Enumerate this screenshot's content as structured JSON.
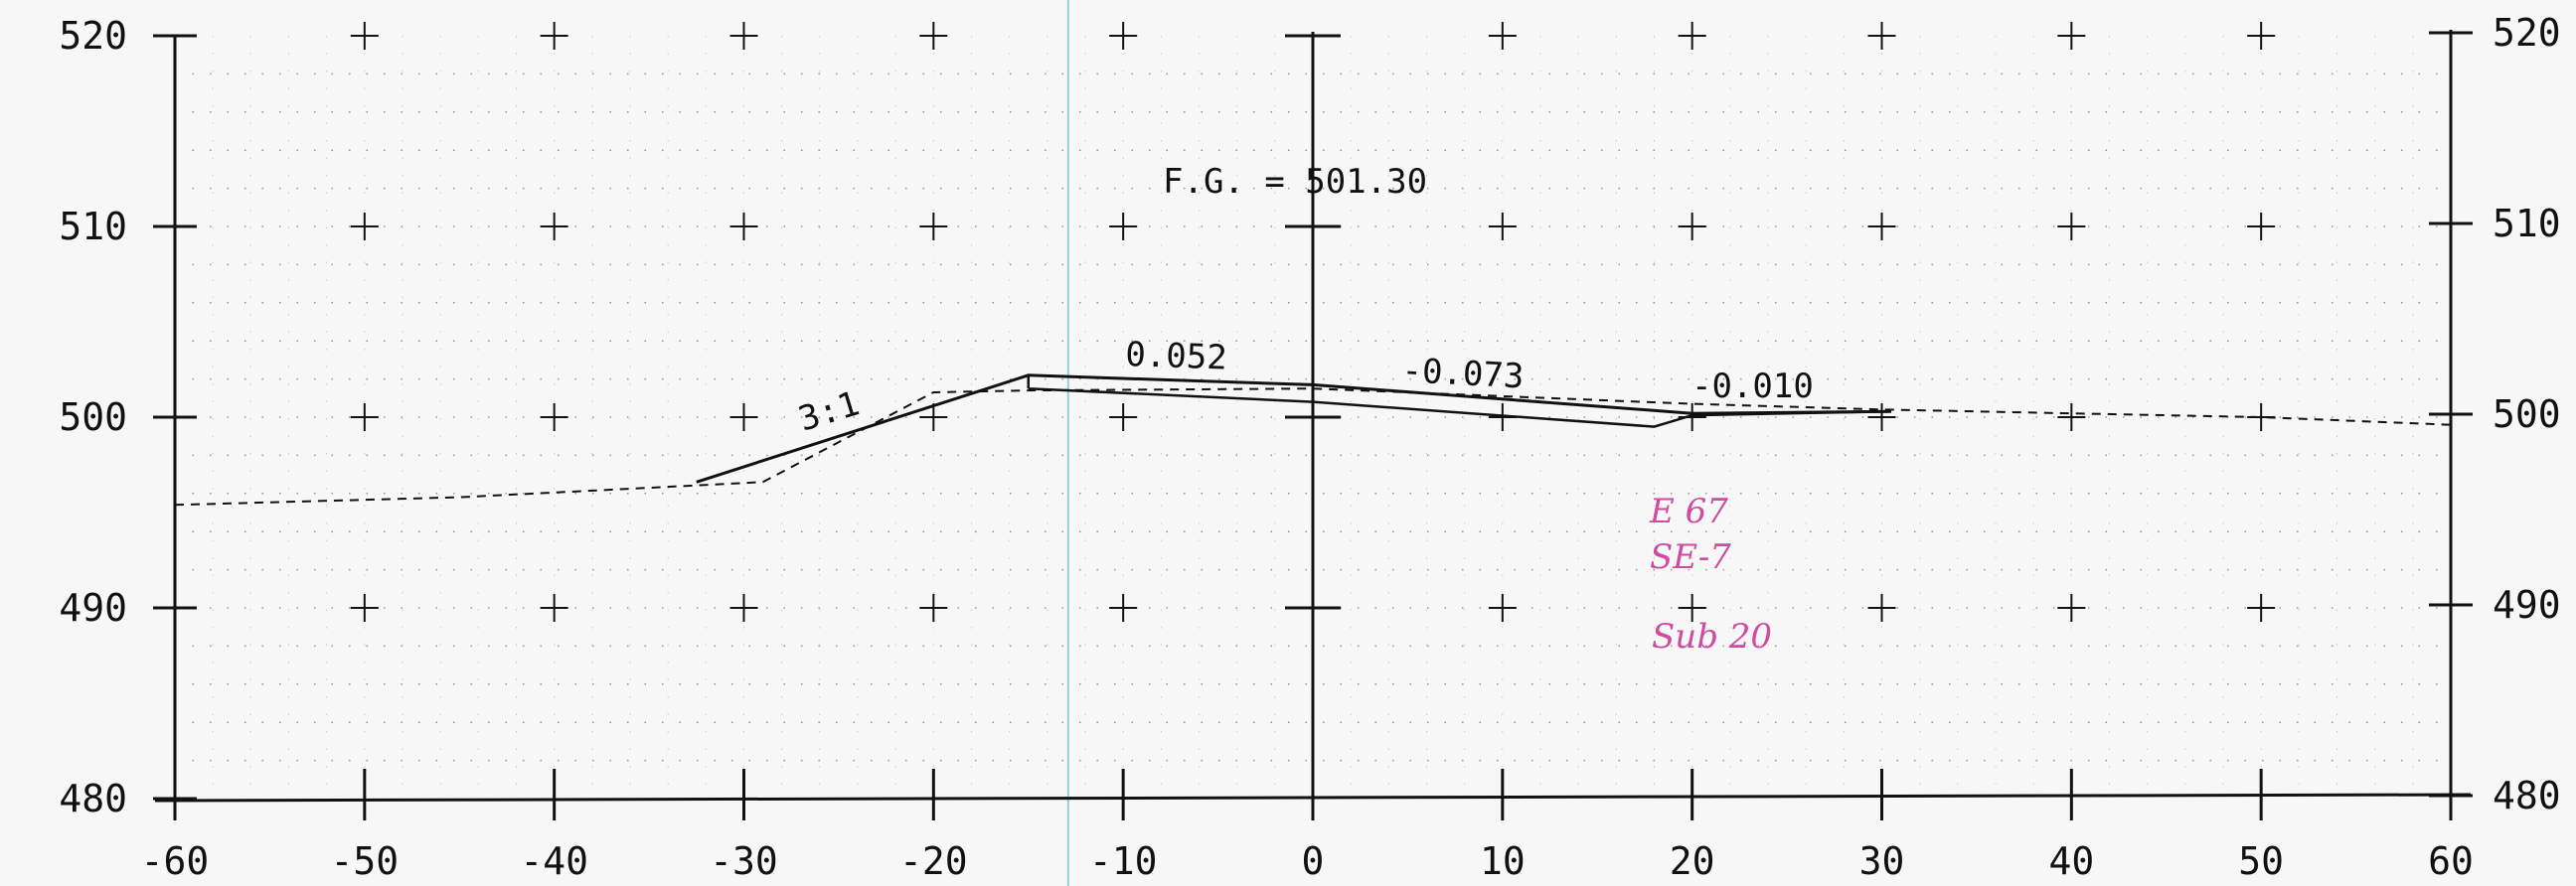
{
  "chart_data": {
    "type": "line",
    "x_ticks": [
      -60,
      -50,
      -40,
      -30,
      -20,
      -10,
      0,
      10,
      20,
      30,
      40,
      50,
      60
    ],
    "y_ticks": [
      480,
      490,
      500,
      510,
      520
    ],
    "xlim": [
      -60,
      60
    ],
    "ylim": [
      480,
      520
    ],
    "grid": "dotted",
    "existing_ground": {
      "x": [
        -60,
        -45,
        -37,
        -29,
        -20,
        -15,
        0,
        20,
        30,
        40,
        50,
        60
      ],
      "y": [
        495.4,
        495.8,
        496.2,
        496.6,
        501.3,
        501.4,
        501.5,
        500.7,
        500.4,
        500.2,
        500.0,
        499.6
      ]
    },
    "finished_grade_top": {
      "x": [
        -32.5,
        -15,
        0,
        20,
        30.5
      ],
      "y": [
        496.6,
        502.2,
        501.7,
        500.2,
        500.3
      ]
    },
    "pavement_bottom": {
      "x": [
        -15,
        0,
        18,
        20,
        30.5
      ],
      "y": [
        501.5,
        500.8,
        499.5,
        500.1,
        500.3
      ]
    },
    "annotations": {
      "fg_label": "F.G. = 501.30",
      "slope_left": "3:1",
      "cross_slope_1": "0.052",
      "cross_slope_2": "-0.073",
      "cross_slope_3": "-0.010"
    },
    "handwritten": {
      "line1": "E 67",
      "line2": "SE-7",
      "line3": "Sub 20"
    },
    "colors": {
      "ink": "#111111",
      "grid_dot": "#9a9a9a",
      "handwriting": "#d04aa0",
      "guide": "#8fd3d3"
    }
  }
}
